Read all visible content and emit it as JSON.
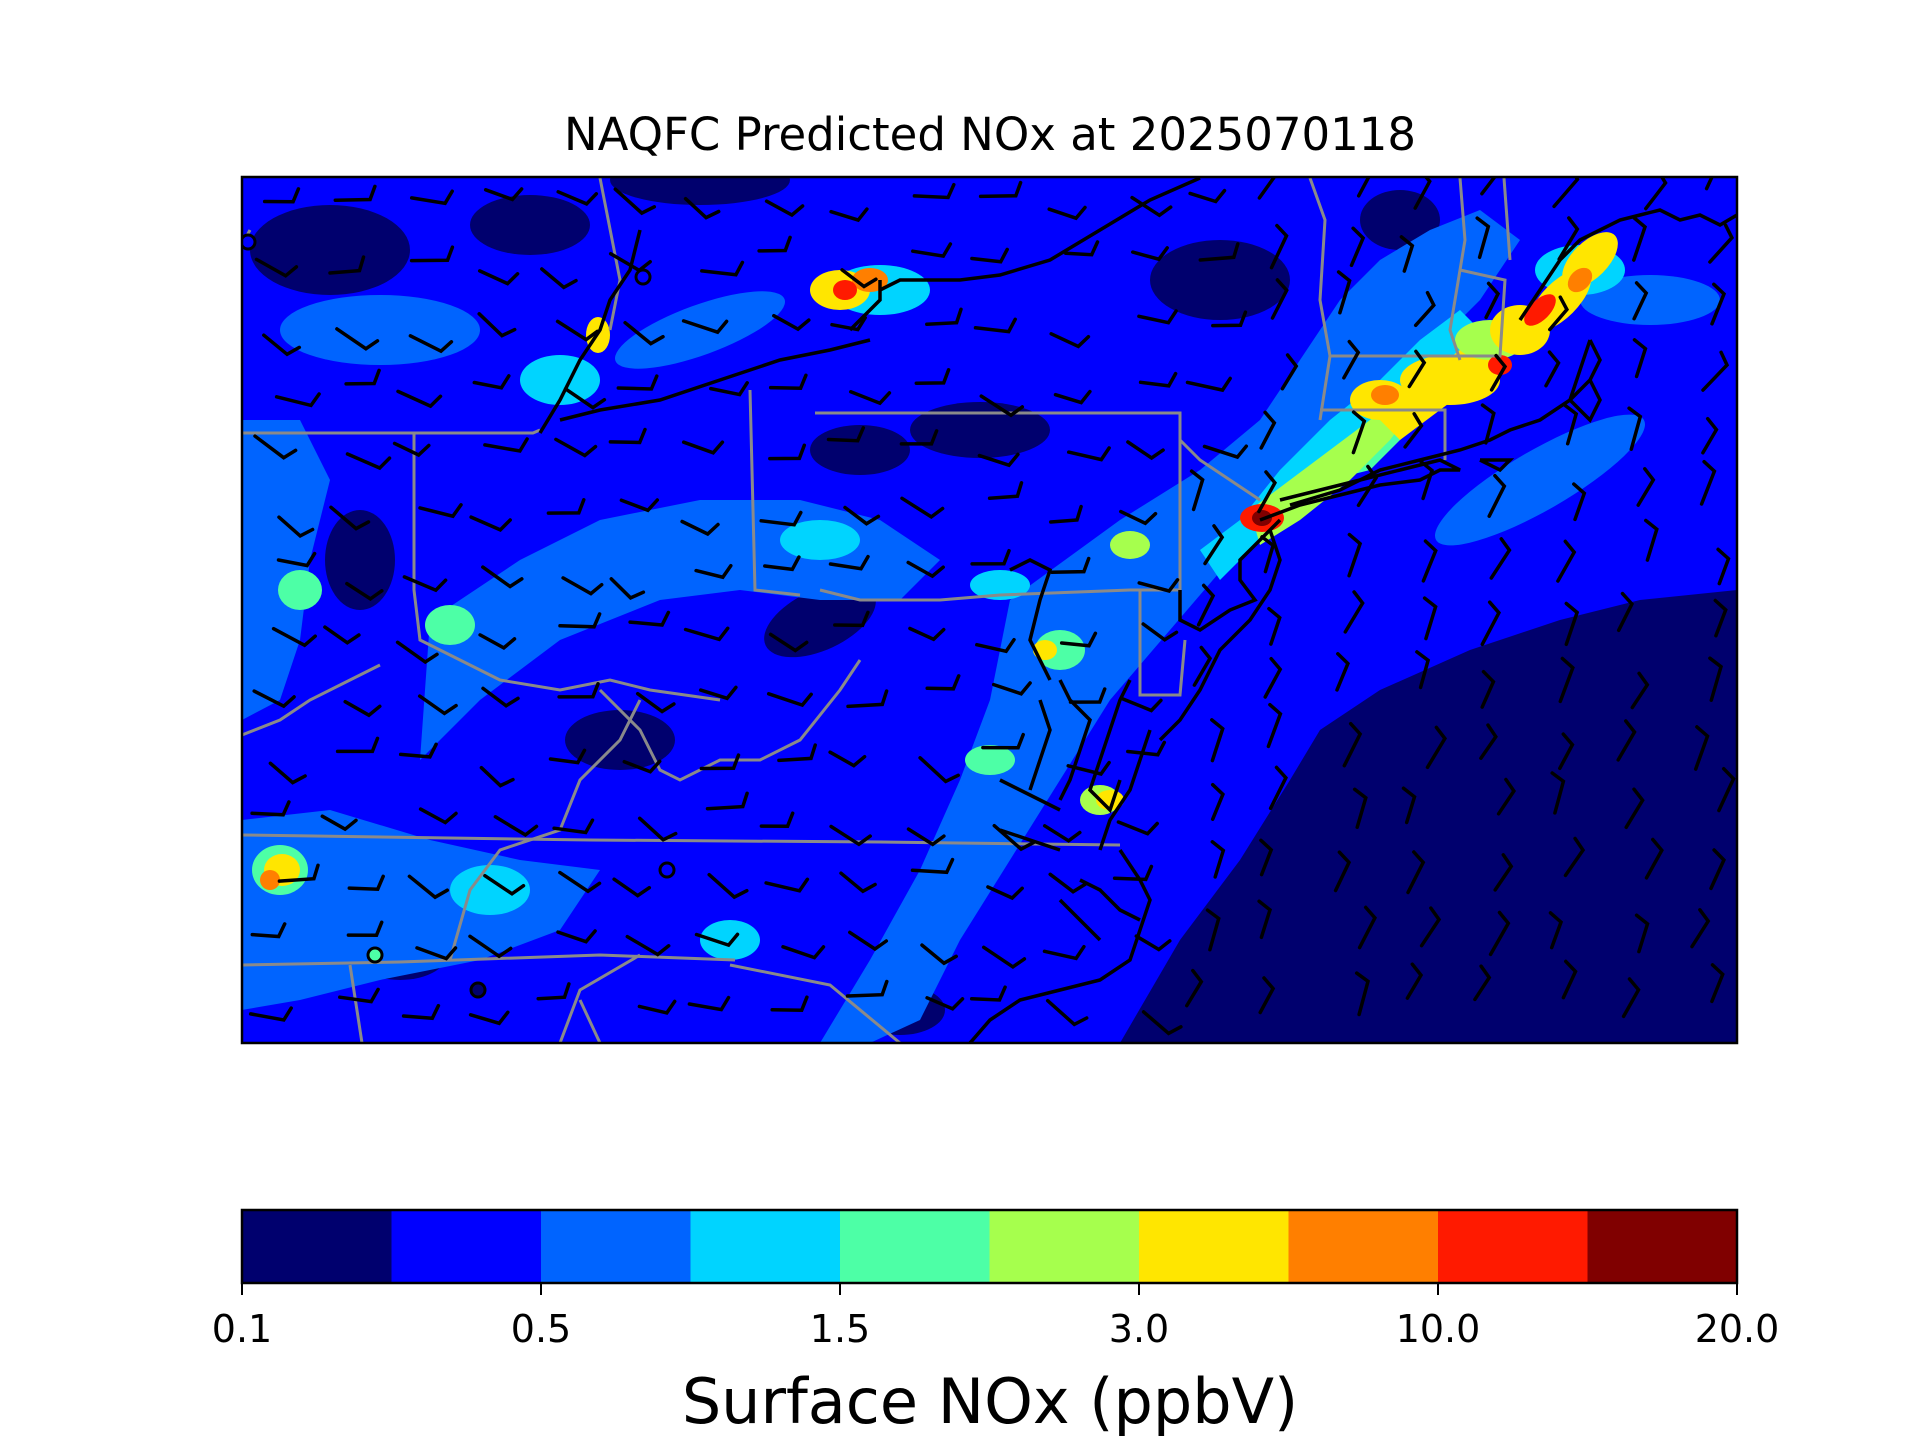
{
  "title": "NAQFC Predicted NOx at 2025070118",
  "colorbar": {
    "label": "Surface NOx (ppbV)",
    "ticks": [
      "0.1",
      "0.5",
      "1.5",
      "3.0",
      "10.0",
      "20.0"
    ],
    "colors": [
      "#00006e",
      "#0000ff",
      "#0064ff",
      "#00d4ff",
      "#4dffa6",
      "#a6ff4d",
      "#ffe600",
      "#ff7f00",
      "#ff1a00",
      "#800000"
    ]
  },
  "map": {
    "region": "US Mid-Atlantic and Northeast",
    "frame_color": "#000000",
    "state_border_color": "#8a8a8a",
    "coastline_color": "#000000",
    "wind_barb_color": "#000000"
  }
}
